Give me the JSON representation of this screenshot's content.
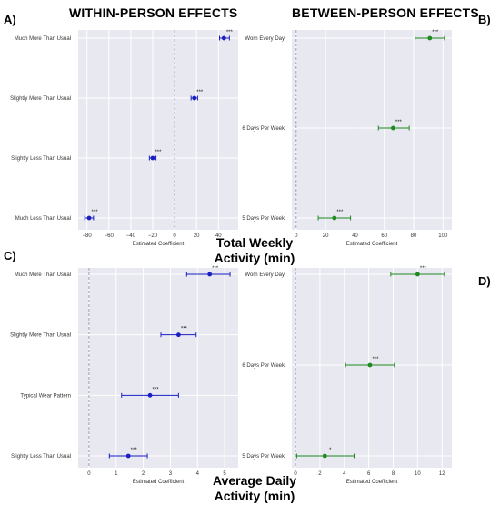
{
  "figure": {
    "column_titles": {
      "left": "WITHIN-PERSON EFFECTS",
      "right": "BETWEEN-PERSON EFFECTS",
      "left_color": "#1a1fc4",
      "right_color": "#1f8a1f"
    },
    "row_titles": {
      "top_line1": "Total Weekly",
      "top_line2": "Activity (min)",
      "bottom_line1": "Average Daily",
      "bottom_line2": "Activity (min)"
    },
    "panel_letters": {
      "A": "A)",
      "B": "B)",
      "C": "C)",
      "D": "D)"
    }
  },
  "chart_data": [
    {
      "panel": "A",
      "type": "scatter",
      "subtype": "coefficient-plot",
      "color": "#1a1fc4",
      "xlabel": "Estimated Coefficient",
      "xlim": [
        -88,
        58
      ],
      "xticks": [
        -80,
        -60,
        -40,
        -20,
        0,
        20,
        40
      ],
      "reference_line": 0,
      "grid": true,
      "categories": [
        "Much More Than Usual",
        "Slightly More Than Usual",
        "Slightly Less Than Usual",
        "Much Less Than Usual"
      ],
      "estimates": [
        45,
        18,
        -20,
        -78
      ],
      "ci_low": [
        41,
        15,
        -23,
        -82
      ],
      "ci_high": [
        50,
        21,
        -17,
        -74
      ],
      "significance": [
        "***",
        "***",
        "***",
        "***"
      ]
    },
    {
      "panel": "B",
      "type": "scatter",
      "subtype": "coefficient-plot",
      "color": "#1f8a1f",
      "xlabel": "Estimated Coefficient",
      "xlim": [
        -3,
        106
      ],
      "xticks": [
        0,
        20,
        40,
        60,
        80,
        100
      ],
      "reference_line": 0,
      "grid": true,
      "categories": [
        "Worn Every Day",
        "6 Days Per Week",
        "5 Days Per Week"
      ],
      "estimates": [
        91,
        66,
        26
      ],
      "ci_low": [
        81,
        56,
        15
      ],
      "ci_high": [
        101,
        77,
        37
      ],
      "significance": [
        "***",
        "***",
        "***"
      ]
    },
    {
      "panel": "C",
      "type": "scatter",
      "subtype": "coefficient-plot",
      "color": "#1a1fc4",
      "xlabel": "Estimated Coefficient",
      "xlim": [
        -0.4,
        5.5
      ],
      "xticks": [
        0,
        1,
        2,
        3,
        4,
        5
      ],
      "reference_line": 0,
      "grid": true,
      "categories": [
        "Much More Than Usual",
        "Slightly More Than Usual",
        "Typical Wear Pattern",
        "Slightly Less Than Usual"
      ],
      "estimates": [
        4.45,
        3.3,
        2.25,
        1.45
      ],
      "ci_low": [
        3.6,
        2.65,
        1.2,
        0.75
      ],
      "ci_high": [
        5.2,
        3.95,
        3.3,
        2.15
      ],
      "significance": [
        "***",
        "***",
        "***",
        "***"
      ]
    },
    {
      "panel": "D",
      "type": "scatter",
      "subtype": "coefficient-plot",
      "color": "#1f8a1f",
      "xlabel": "Estimated Coefficient",
      "xlim": [
        -0.3,
        12.8
      ],
      "xticks": [
        0,
        2,
        4,
        6,
        8,
        10,
        12
      ],
      "reference_line": 0,
      "grid": true,
      "categories": [
        "Worn Every Day",
        "6 Days Per Week",
        "5 Days Per Week"
      ],
      "estimates": [
        10,
        6.1,
        2.4
      ],
      "ci_low": [
        7.8,
        4.1,
        0.1
      ],
      "ci_high": [
        12.2,
        8.1,
        4.8
      ],
      "significance": [
        "***",
        "***",
        "*"
      ]
    }
  ]
}
